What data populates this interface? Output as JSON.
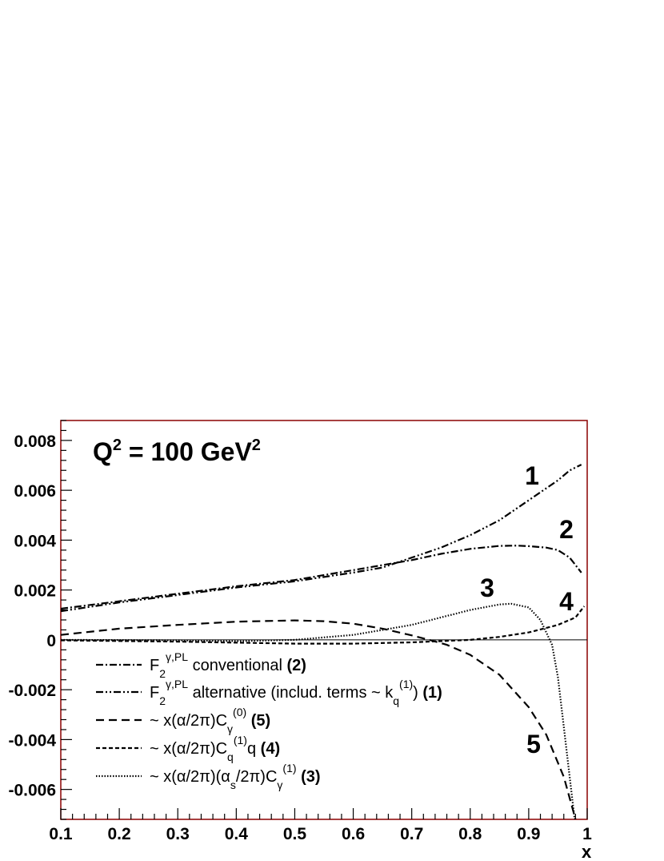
{
  "chart_data": {
    "type": "line",
    "title": "",
    "annotation": {
      "base": "Q",
      "exp1": "2",
      "mid": " = 100 GeV",
      "exp2": "2"
    },
    "xlabel": "x",
    "ylabel": "",
    "xlim": [
      0.1,
      1.0
    ],
    "ylim": [
      -0.0072,
      0.0088
    ],
    "grid": false,
    "legend_position": "bottom-left",
    "x_ticks": [
      "0.1",
      "0.2",
      "0.3",
      "0.4",
      "0.5",
      "0.6",
      "0.7",
      "0.8",
      "0.9",
      "1"
    ],
    "y_ticks": [
      "0.008",
      "0.006",
      "0.004",
      "0.002",
      "0",
      "-0.002",
      "-0.004",
      "-0.006"
    ],
    "y_tick_values": [
      0.008,
      0.006,
      0.004,
      0.002,
      0,
      -0.002,
      -0.004,
      -0.006
    ],
    "x_tick_values": [
      0.1,
      0.2,
      0.3,
      0.4,
      0.5,
      0.6,
      0.7,
      0.8,
      0.9,
      1.0
    ],
    "series": [
      {
        "label_num": "1",
        "style": "dashdotdot",
        "x": [
          0.1,
          0.2,
          0.3,
          0.4,
          0.5,
          0.6,
          0.65,
          0.7,
          0.75,
          0.8,
          0.85,
          0.9,
          0.95,
          0.97,
          0.99
        ],
        "y": [
          0.00115,
          0.0015,
          0.0018,
          0.0021,
          0.00235,
          0.0027,
          0.0029,
          0.0033,
          0.0037,
          0.0042,
          0.0048,
          0.0056,
          0.0064,
          0.0068,
          0.00703
        ]
      },
      {
        "label_num": "2",
        "style": "dashdot",
        "x": [
          0.1,
          0.2,
          0.3,
          0.4,
          0.5,
          0.6,
          0.7,
          0.75,
          0.8,
          0.85,
          0.88,
          0.9,
          0.93,
          0.95,
          0.97,
          0.99
        ],
        "y": [
          0.00125,
          0.00155,
          0.00185,
          0.00215,
          0.0024,
          0.0028,
          0.0032,
          0.00345,
          0.00365,
          0.00377,
          0.00378,
          0.00376,
          0.0037,
          0.0036,
          0.0033,
          0.0027
        ]
      },
      {
        "label_num": "3",
        "style": "dotted",
        "x": [
          0.1,
          0.3,
          0.4,
          0.5,
          0.55,
          0.6,
          0.65,
          0.7,
          0.75,
          0.8,
          0.85,
          0.87,
          0.9,
          0.92,
          0.94,
          0.95,
          0.96,
          0.97,
          0.98
        ],
        "y": [
          0.0,
          -2e-05,
          -5e-05,
          0.0,
          0.0001,
          0.0002,
          0.0004,
          0.0006,
          0.0009,
          0.0012,
          0.00142,
          0.00145,
          0.0013,
          0.0008,
          -0.0002,
          -0.0015,
          -0.0035,
          -0.0055,
          -0.0075
        ]
      },
      {
        "label_num": "4",
        "style": "dashed-short",
        "x": [
          0.1,
          0.3,
          0.5,
          0.6,
          0.7,
          0.8,
          0.85,
          0.9,
          0.95,
          0.98,
          0.995
        ],
        "y": [
          -2e-05,
          -7e-05,
          -0.00015,
          -0.00015,
          -0.0001,
          0.0,
          0.00012,
          0.0003,
          0.0006,
          0.0009,
          0.00135
        ]
      },
      {
        "label_num": "5",
        "style": "dashed-long",
        "x": [
          0.1,
          0.2,
          0.3,
          0.4,
          0.5,
          0.55,
          0.6,
          0.65,
          0.7,
          0.73,
          0.76,
          0.8,
          0.85,
          0.9,
          0.93,
          0.96,
          0.98
        ],
        "y": [
          0.0002,
          0.00045,
          0.0006,
          0.00073,
          0.00078,
          0.00075,
          0.00065,
          0.00045,
          0.00018,
          0.0,
          -0.0002,
          -0.0006,
          -0.0014,
          -0.0027,
          -0.0038,
          -0.0055,
          -0.0072
        ]
      }
    ],
    "legend": [
      {
        "style": "dashdot",
        "parts": [
          [
            "F",
            ""
          ],
          [
            "2",
            "sub"
          ],
          [
            "γ,PL",
            "sup"
          ],
          [
            " conventional ",
            ""
          ],
          [
            "(2)",
            "bold"
          ]
        ]
      },
      {
        "style": "dashdotdot",
        "parts": [
          [
            "F",
            ""
          ],
          [
            "2",
            "sub"
          ],
          [
            "γ,PL",
            "sup"
          ],
          [
            " alternative (includ. terms ~ k",
            ""
          ],
          [
            "q",
            "sub"
          ],
          [
            "(1)",
            "sup"
          ],
          [
            ") ",
            ""
          ],
          [
            "(1)",
            "bold"
          ]
        ]
      },
      {
        "style": "dashed-long",
        "parts": [
          [
            "~ x(α/2π)C",
            ""
          ],
          [
            "γ",
            "sub"
          ],
          [
            "(0)",
            "sup"
          ],
          [
            " ",
            ""
          ],
          [
            "(5)",
            "bold"
          ]
        ]
      },
      {
        "style": "dashed-short",
        "parts": [
          [
            "~ x(α/2π)C",
            ""
          ],
          [
            "q",
            "sub"
          ],
          [
            "(1)",
            "sup"
          ],
          [
            "q ",
            ""
          ],
          [
            "(4)",
            "bold"
          ]
        ]
      },
      {
        "style": "dotted",
        "parts": [
          [
            "~ x(α/2π)(α",
            ""
          ],
          [
            "s",
            "sub"
          ],
          [
            "/2π)C",
            ""
          ],
          [
            "γ",
            "sub"
          ],
          [
            "(1)",
            "sup"
          ],
          [
            " ",
            ""
          ],
          [
            "(3)",
            "bold"
          ]
        ]
      }
    ]
  }
}
